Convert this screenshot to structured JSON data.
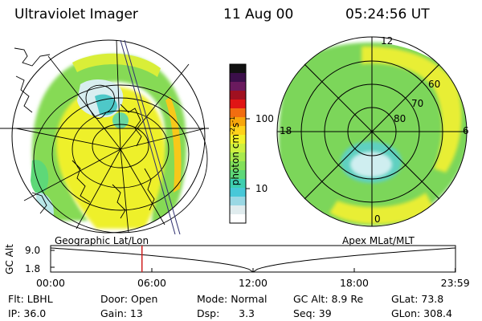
{
  "header": {
    "instrument": "Ultraviolet Imager",
    "date": "11 Aug 00",
    "time": "05:24:56 UT"
  },
  "left_panel": {
    "caption": "Geographic Lat/Lon"
  },
  "right_panel": {
    "caption": "Apex  MLat/MLT",
    "mlt_labels": {
      "top": "12",
      "left": "18",
      "right": "6",
      "bottom": "0"
    },
    "lat_labels": [
      "60",
      "70",
      "80"
    ]
  },
  "colorbar": {
    "unit_label": "photon cm",
    "unit_sup1": "-2",
    "unit_mid": "s",
    "unit_sup2": "-1",
    "tick_100": "100",
    "tick_10": "10",
    "colors": [
      "#111111",
      "#3b0f4a",
      "#6a1a5e",
      "#a01020",
      "#e01515",
      "#f26d10",
      "#f8a60c",
      "#ffd21a",
      "#f2f22a",
      "#cdf040",
      "#a8ea4e",
      "#82e05a",
      "#5ed878",
      "#3ecfb0",
      "#48c8d8",
      "#9ad8e4",
      "#e0ecee",
      "#ffffff"
    ]
  },
  "altitude_plot": {
    "ylabel": "GC Alt",
    "y_top": "9.0",
    "y_bottom": "1.8",
    "x_ticks": [
      "00:00",
      "06:00",
      "12:00",
      "18:00",
      "23:59"
    ],
    "x_values_hours": [
      0,
      6,
      12,
      18,
      23.983
    ],
    "marker_hour": 5.416,
    "marker_color": "#d02020"
  },
  "footer": {
    "filter": "Flt: LBHL",
    "door": "Door: Open",
    "mode": "Mode: Normal",
    "gc_alt": "GC Alt: 8.9 Re",
    "glat": "GLat: 73.8",
    "ip": "IP: 36.0",
    "gain": "Gain: 13",
    "dsp": "Dsp:      3.3",
    "seq": "Seq: 39",
    "glon": "GLon: 308.4"
  }
}
